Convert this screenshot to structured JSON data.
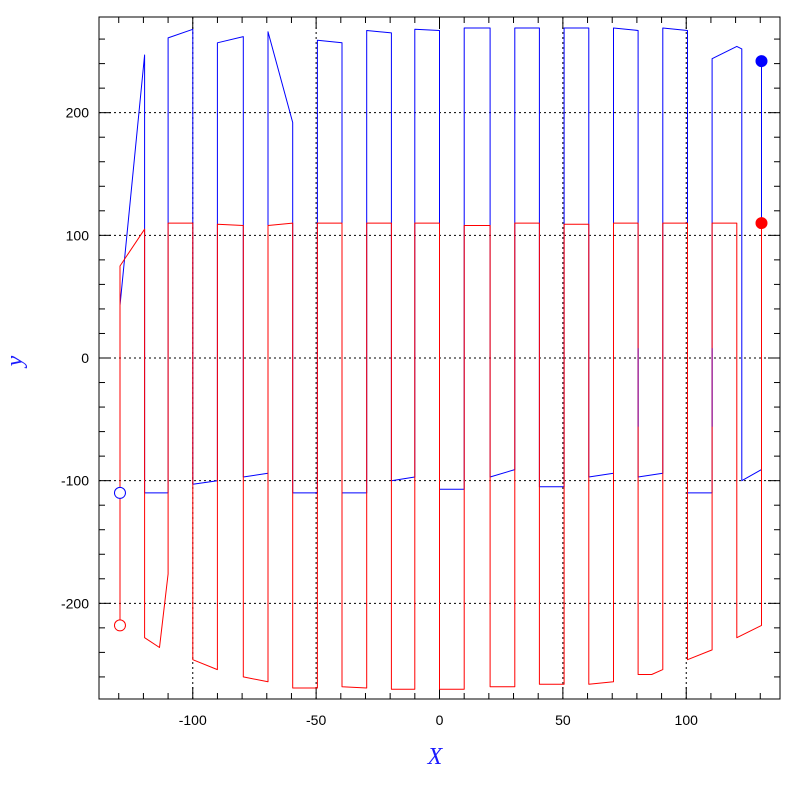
{
  "chart_data": {
    "type": "line",
    "title": "",
    "xlabel": "X",
    "ylabel": "y",
    "xlim": [
      -138,
      138
    ],
    "ylim": [
      -278,
      278
    ],
    "grid": "dotted",
    "xticks": [
      -100,
      -50,
      0,
      50,
      100
    ],
    "xtick_labels": [
      "-100",
      "-50",
      "0",
      "50",
      "100"
    ],
    "yticks": [
      -200,
      -100,
      0,
      100,
      200
    ],
    "ytick_labels": [
      "-200",
      "-100",
      "0",
      "100",
      "200"
    ],
    "colors": {
      "blue": "#0000ff",
      "red": "#ff0000",
      "purple": "#8b0090",
      "axis_title": "#1a1aff"
    },
    "series": [
      {
        "color": "blue",
        "points": [
          [
            -129.5,
            43
          ],
          [
            -119.5,
            247
          ],
          [
            -119.5,
            -110
          ],
          [
            -110,
            -110
          ],
          [
            -110,
            261
          ],
          [
            -100,
            268
          ],
          [
            -100,
            -103
          ],
          [
            -90,
            -100
          ],
          [
            -90,
            257
          ],
          [
            -79.5,
            262
          ],
          [
            -79.5,
            -97
          ],
          [
            -69.5,
            -94
          ],
          [
            -69.5,
            266
          ],
          [
            -59.5,
            192
          ],
          [
            -59.5,
            -110
          ],
          [
            -49.5,
            -110
          ],
          [
            -49.5,
            259
          ],
          [
            -39.5,
            257
          ],
          [
            -39.5,
            -110
          ],
          [
            -29.5,
            -110
          ],
          [
            -29.5,
            267
          ],
          [
            -19.5,
            265
          ],
          [
            -19.5,
            -100
          ],
          [
            -10,
            -97
          ],
          [
            -10,
            268
          ],
          [
            0,
            267
          ],
          [
            0,
            -107
          ],
          [
            10,
            -107
          ],
          [
            10,
            269
          ],
          [
            20.5,
            269
          ],
          [
            20.5,
            -97
          ],
          [
            30.5,
            -91
          ],
          [
            30.5,
            269
          ],
          [
            40.5,
            269
          ],
          [
            40.5,
            -105
          ],
          [
            50.5,
            -105
          ],
          [
            50.5,
            269
          ],
          [
            60.5,
            269
          ],
          [
            60.5,
            -97
          ],
          [
            70.5,
            -94
          ],
          [
            70.5,
            269
          ],
          [
            80.5,
            267
          ],
          [
            80.5,
            -97
          ],
          [
            90.5,
            -94
          ],
          [
            90.5,
            269
          ],
          [
            100.5,
            267
          ],
          [
            100.5,
            -110
          ],
          [
            110.5,
            -110
          ],
          [
            110.5,
            244
          ],
          [
            120.5,
            254
          ],
          [
            122.5,
            252
          ],
          [
            122.5,
            -100
          ],
          [
            130.5,
            -91
          ],
          [
            130.5,
            242
          ]
        ]
      },
      {
        "color": "red",
        "points": [
          [
            -129.5,
            -218
          ],
          [
            -129.5,
            75
          ],
          [
            -119.5,
            105
          ],
          [
            -119.5,
            -228
          ],
          [
            -113.5,
            -236
          ],
          [
            -110,
            -176
          ],
          [
            -110,
            110
          ],
          [
            -100,
            110
          ],
          [
            -100,
            -246
          ],
          [
            -90,
            -254
          ],
          [
            -90,
            109
          ],
          [
            -79.5,
            108
          ],
          [
            -79.5,
            -260
          ],
          [
            -69.5,
            -264
          ],
          [
            -69.5,
            108
          ],
          [
            -59.5,
            110
          ],
          [
            -59.5,
            -269
          ],
          [
            -49.5,
            -269
          ],
          [
            -49.5,
            110
          ],
          [
            -39.5,
            110
          ],
          [
            -39.5,
            -268
          ],
          [
            -29.5,
            -269
          ],
          [
            -29.5,
            110
          ],
          [
            -19.5,
            110
          ],
          [
            -19.5,
            -270
          ],
          [
            -10,
            -270
          ],
          [
            -10,
            110
          ],
          [
            0,
            110
          ],
          [
            0,
            -270
          ],
          [
            10,
            -270
          ],
          [
            10,
            108
          ],
          [
            20.5,
            108
          ],
          [
            20.5,
            -268
          ],
          [
            30.5,
            -268
          ],
          [
            30.5,
            110
          ],
          [
            40.5,
            110
          ],
          [
            40.5,
            -266
          ],
          [
            50.5,
            -266
          ],
          [
            50.5,
            109
          ],
          [
            60.5,
            109
          ],
          [
            60.5,
            -266
          ],
          [
            70.5,
            -264
          ],
          [
            70.5,
            110
          ],
          [
            80.5,
            110
          ],
          [
            80.5,
            -258
          ],
          [
            86,
            -258
          ],
          [
            90.5,
            -254
          ],
          [
            90.5,
            110
          ],
          [
            100.5,
            110
          ],
          [
            100.5,
            -246
          ],
          [
            110.5,
            -238
          ],
          [
            110.5,
            110
          ],
          [
            120.5,
            110
          ],
          [
            120.5,
            -228
          ],
          [
            130.5,
            -218
          ],
          [
            130.5,
            110
          ]
        ]
      },
      {
        "color": "purple",
        "points": [
          [
            80.5,
            8
          ],
          [
            80.5,
            -56
          ]
        ]
      },
      {
        "color": "purple",
        "points": [
          [
            110.5,
            8
          ],
          [
            110.5,
            -56
          ]
        ]
      }
    ],
    "markers": [
      {
        "x": -129.5,
        "y": -110,
        "color": "blue",
        "filled": false
      },
      {
        "x": -129.5,
        "y": -218,
        "color": "red",
        "filled": false
      },
      {
        "x": 130.5,
        "y": 242,
        "color": "blue",
        "filled": true
      },
      {
        "x": 130.5,
        "y": 110,
        "color": "red",
        "filled": true
      }
    ]
  }
}
